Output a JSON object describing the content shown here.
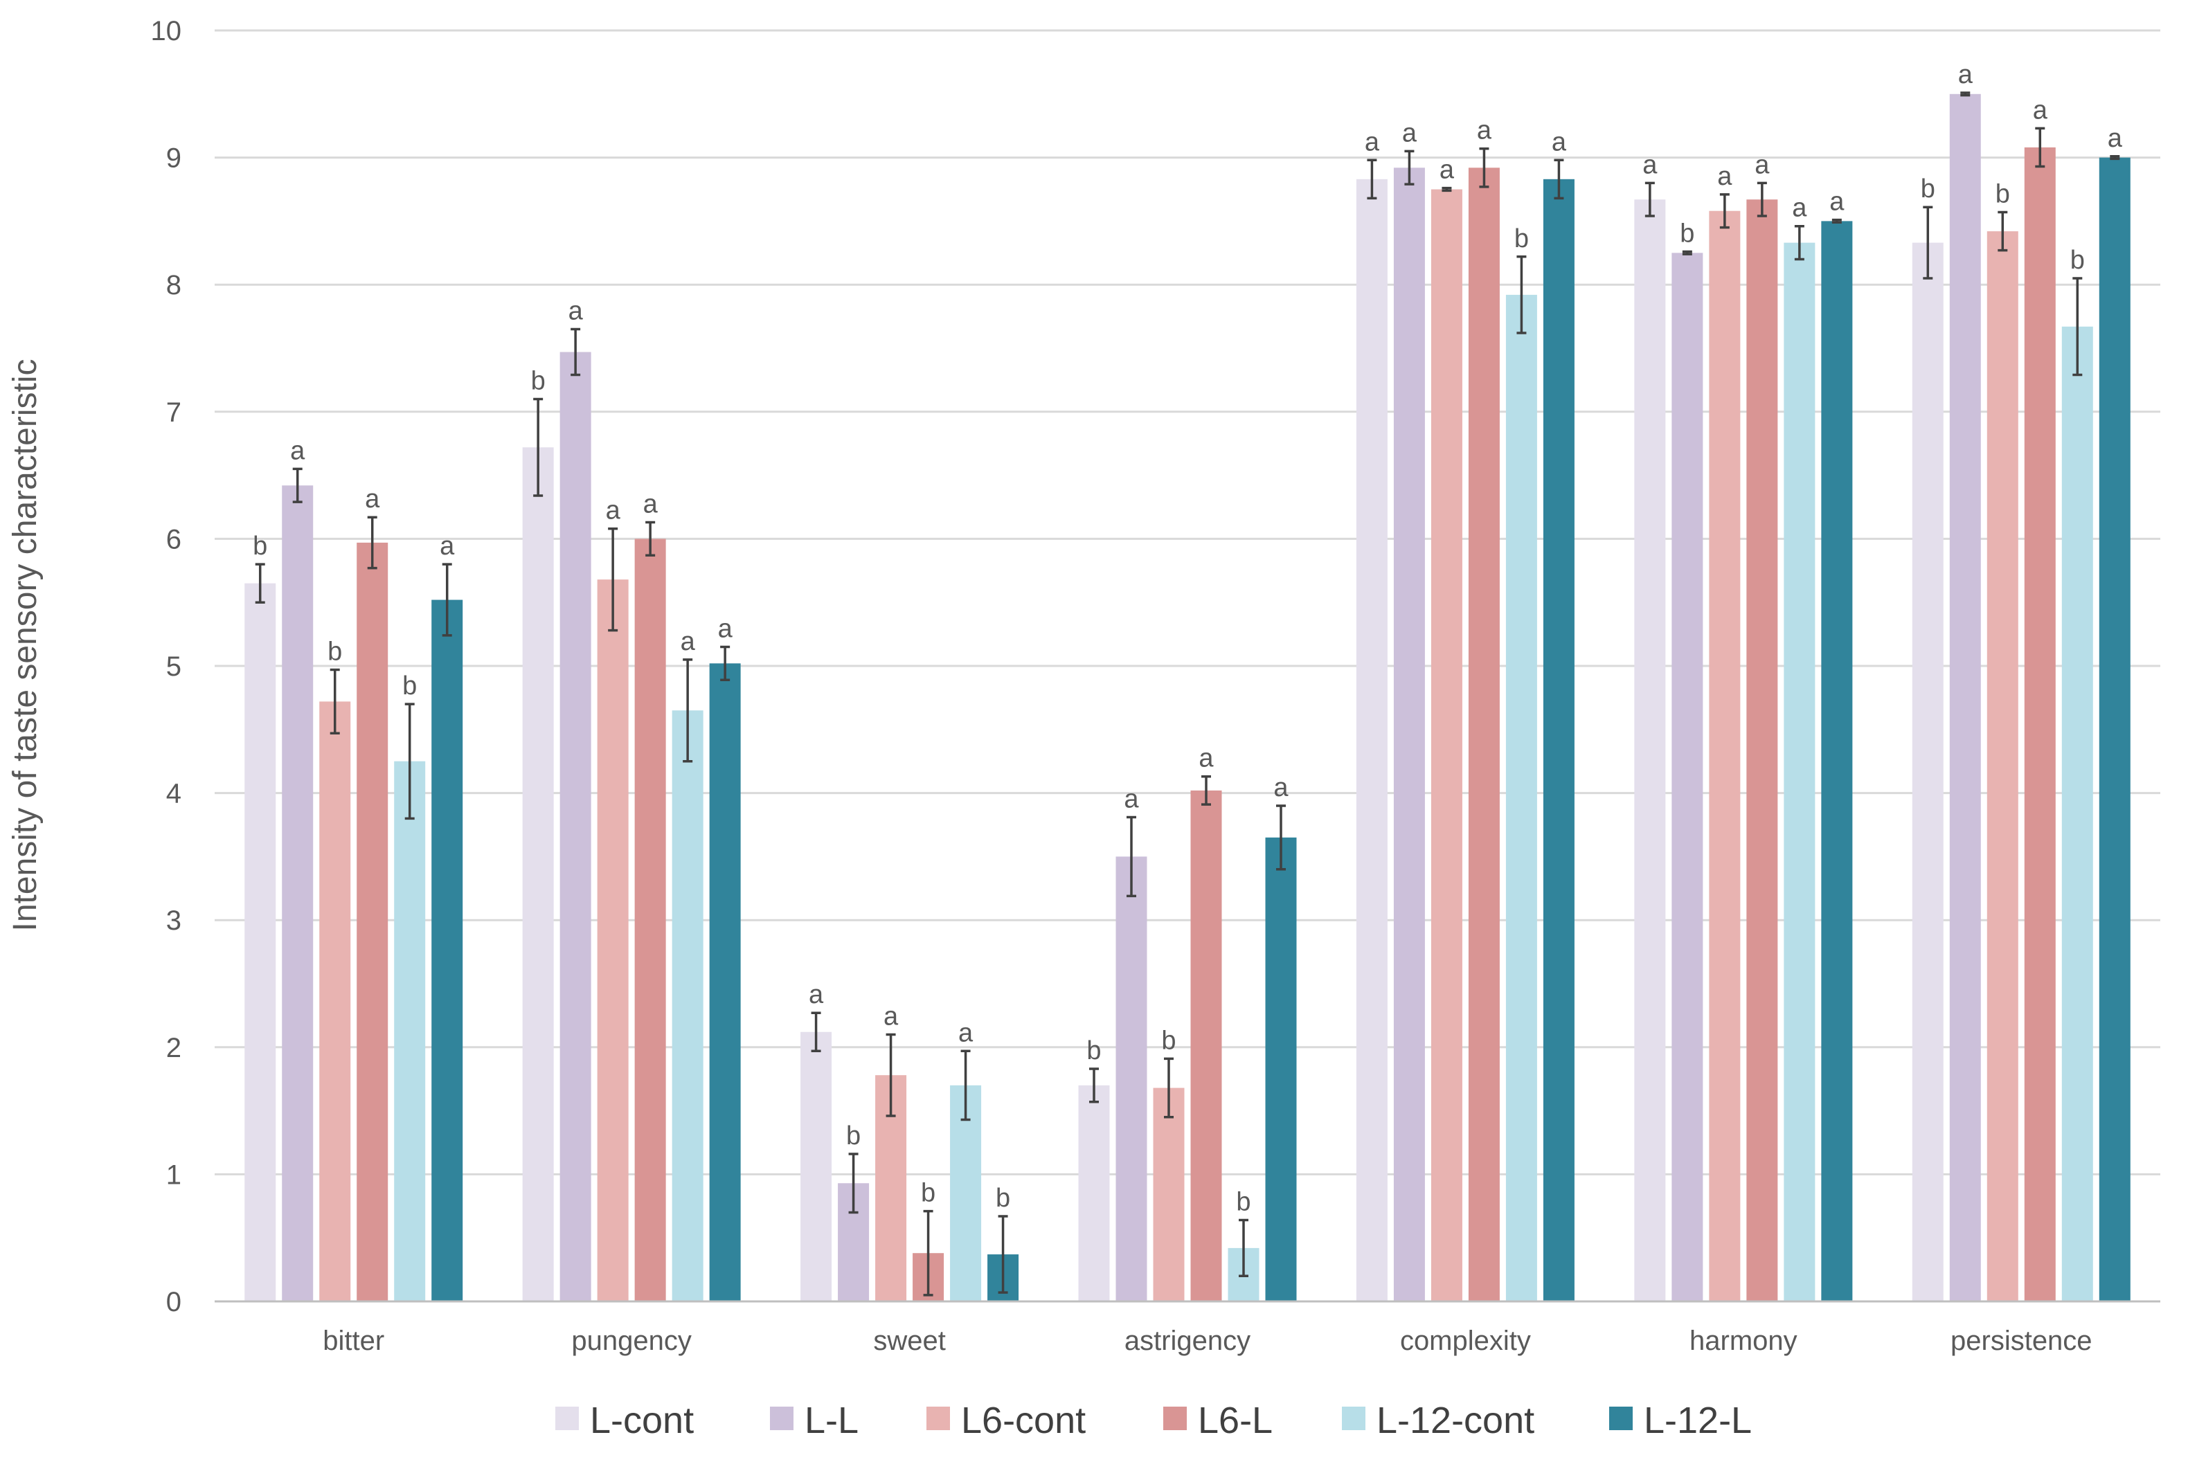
{
  "chart_data": {
    "type": "bar",
    "title": "",
    "xlabel": "",
    "ylabel": "Intensity of taste sensory characteristic",
    "ylim": [
      0,
      10
    ],
    "yticks": [
      0,
      1,
      2,
      3,
      4,
      5,
      6,
      7,
      8,
      9,
      10
    ],
    "grid": true,
    "legend_position": "bottom",
    "categories": [
      "bitter",
      "pungency",
      "sweet",
      "astrigency",
      "complexity",
      "harmony",
      "persistence"
    ],
    "series": [
      {
        "name": "L-cont",
        "color": "#e4dfec",
        "values": [
          5.65,
          6.72,
          2.12,
          1.7,
          8.83,
          8.67,
          8.33
        ],
        "errors": [
          0.15,
          0.38,
          0.15,
          0.13,
          0.15,
          0.13,
          0.28
        ],
        "letters": [
          "b",
          "b",
          "a",
          "b",
          "a",
          "a",
          "b"
        ]
      },
      {
        "name": "L-L",
        "color": "#ccc0da",
        "values": [
          6.42,
          7.47,
          0.93,
          3.5,
          8.92,
          8.25,
          9.5
        ],
        "errors": [
          0.13,
          0.18,
          0.23,
          0.31,
          0.13,
          0.01,
          0.01
        ],
        "letters": [
          "a",
          "a",
          "b",
          "a",
          "a",
          "b",
          "a"
        ]
      },
      {
        "name": "L6-cont",
        "color": "#e8b3b1",
        "values": [
          4.72,
          5.68,
          1.78,
          1.68,
          8.75,
          8.58,
          8.42
        ],
        "errors": [
          0.25,
          0.4,
          0.32,
          0.23,
          0.01,
          0.13,
          0.15
        ],
        "letters": [
          "b",
          "a",
          "a",
          "b",
          "a",
          "a",
          "b"
        ]
      },
      {
        "name": "L6-L",
        "color": "#d99594",
        "values": [
          5.97,
          6.0,
          0.38,
          4.02,
          8.92,
          8.67,
          9.08
        ],
        "errors": [
          0.2,
          0.13,
          0.33,
          0.11,
          0.15,
          0.13,
          0.15
        ],
        "letters": [
          "a",
          "a",
          "b",
          "a",
          "a",
          "a",
          "a"
        ]
      },
      {
        "name": "L-12-cont",
        "color": "#b7dee8",
        "values": [
          4.25,
          4.65,
          1.7,
          0.42,
          7.92,
          8.33,
          7.67
        ],
        "errors": [
          0.45,
          0.4,
          0.27,
          0.22,
          0.3,
          0.13,
          0.38
        ],
        "letters": [
          "b",
          "a",
          "a",
          "b",
          "b",
          "a",
          "b"
        ]
      },
      {
        "name": "L-12-L",
        "color": "#31849b",
        "values": [
          5.52,
          5.02,
          0.37,
          3.65,
          8.83,
          8.5,
          9.0
        ],
        "errors": [
          0.28,
          0.13,
          0.3,
          0.25,
          0.15,
          0.01,
          0.01
        ],
        "letters": [
          "a",
          "a",
          "b",
          "a",
          "a",
          "a",
          "a"
        ]
      }
    ]
  }
}
